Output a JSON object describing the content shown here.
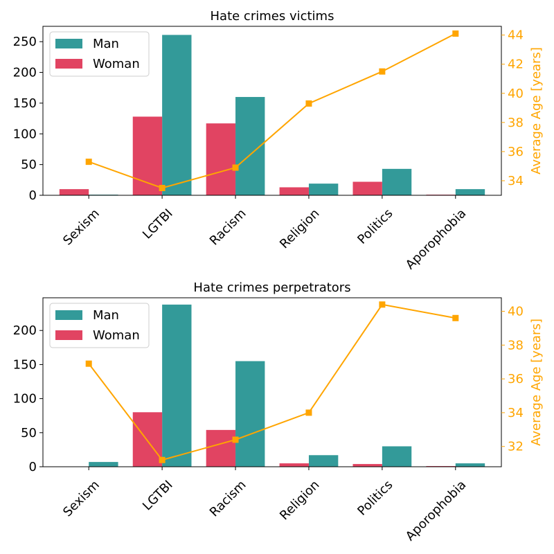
{
  "chart_data": [
    {
      "type": "bar",
      "title": "Hate crimes victims",
      "categories": [
        "Sexism",
        "LGTBI",
        "Racism",
        "Religion",
        "Politics",
        "Aporophobia"
      ],
      "series": [
        {
          "name": "Man",
          "values": [
            1,
            261,
            160,
            19,
            43,
            10
          ],
          "color": "#339a99"
        },
        {
          "name": "Woman",
          "values": [
            10,
            128,
            117,
            13,
            22,
            1
          ],
          "color": "#e14462"
        }
      ],
      "ylim": [
        0,
        275
      ],
      "yticks": [
        0,
        50,
        100,
        150,
        200,
        250
      ],
      "secondary": {
        "type": "line",
        "ylabel": "Average Age [years]",
        "values": [
          35.3,
          33.5,
          34.9,
          39.3,
          41.5,
          44.1
        ],
        "ylim": [
          33.0,
          44.6
        ],
        "yticks": [
          34,
          36,
          38,
          40,
          42,
          44
        ],
        "color": "#ffa500"
      },
      "legend": "upper-left"
    },
    {
      "type": "bar",
      "title": "Hate crimes perpetrators",
      "categories": [
        "Sexism",
        "LGTBI",
        "Racism",
        "Religion",
        "Politics",
        "Aporophobia"
      ],
      "series": [
        {
          "name": "Man",
          "values": [
            7,
            238,
            155,
            17,
            30,
            5
          ],
          "color": "#339a99"
        },
        {
          "name": "Woman",
          "values": [
            0,
            80,
            54,
            5,
            4,
            1
          ],
          "color": "#e14462"
        }
      ],
      "ylim": [
        0,
        248
      ],
      "yticks": [
        0,
        50,
        100,
        150,
        200
      ],
      "secondary": {
        "type": "line",
        "ylabel": "Average Age [years]",
        "values": [
          36.9,
          31.2,
          32.4,
          34.0,
          40.4,
          39.6
        ],
        "ylim": [
          30.8,
          40.8
        ],
        "yticks": [
          32,
          34,
          36,
          38,
          40
        ],
        "color": "#ffa500"
      },
      "legend": "upper-left"
    }
  ]
}
